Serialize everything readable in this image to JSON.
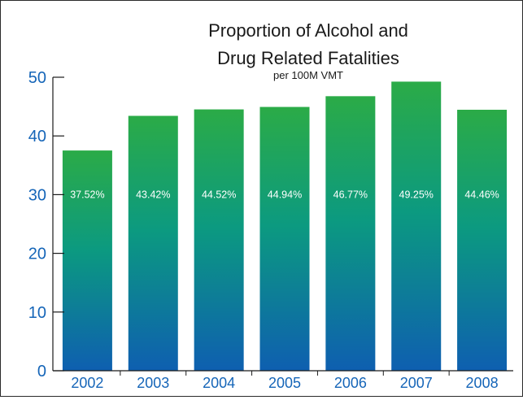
{
  "chart_data": {
    "type": "bar",
    "title_line1": "Proportion of Alcohol and",
    "title_line2": "Drug Related Fatalities",
    "subtitle": "per 100M VMT",
    "categories": [
      "2002",
      "2003",
      "2004",
      "2005",
      "2006",
      "2007",
      "2008"
    ],
    "values": [
      37.52,
      43.42,
      44.52,
      44.94,
      46.77,
      49.25,
      44.46
    ],
    "value_labels": [
      "37.52%",
      "43.42%",
      "44.52%",
      "44.94%",
      "46.77%",
      "49.25%",
      "44.46%"
    ],
    "yticks": [
      "0",
      "10",
      "20",
      "30",
      "40",
      "50"
    ],
    "ylim": [
      0,
      50
    ],
    "grid": false,
    "legend": "none",
    "colors": {
      "bar_top": "#2bab47",
      "bar_mid": "#0c9a80",
      "bar_bottom": "#0e5fb0",
      "axis_text": "#1565b8",
      "axis_line": "#1a1a1a"
    }
  }
}
